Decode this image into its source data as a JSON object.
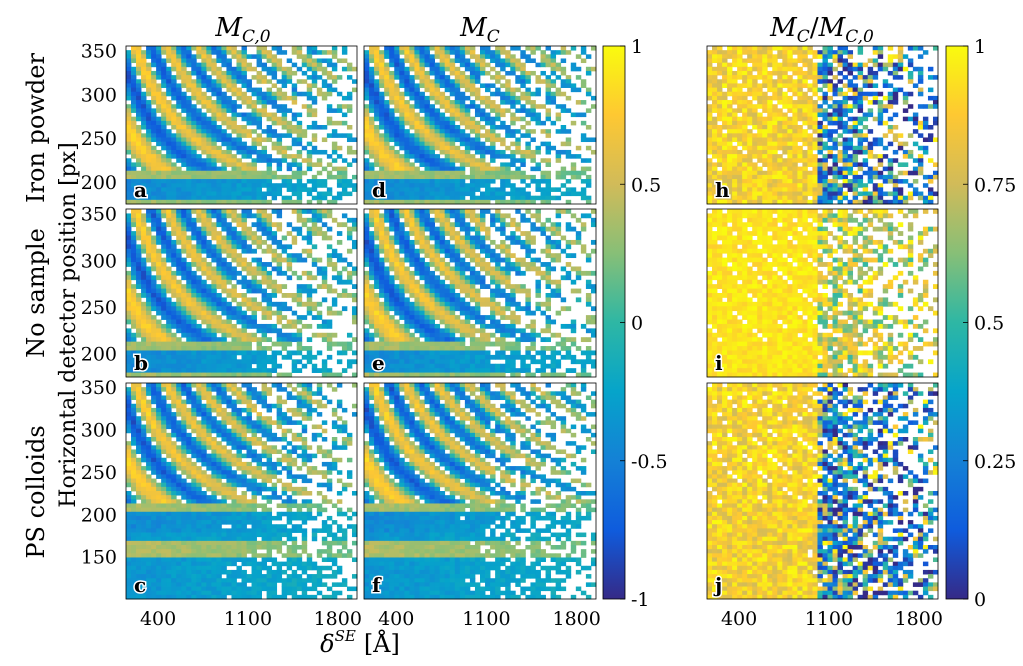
{
  "figure": {
    "col_titles": [
      {
        "base": "M",
        "sub": "C,0"
      },
      {
        "base": "M",
        "sub": "C"
      },
      {
        "base": "M",
        "sub": "C",
        "sep": "/",
        "base2": "M",
        "sub2": "C,0"
      }
    ],
    "row_labels": [
      "Iron powder",
      "No sample",
      "PS colloids"
    ],
    "ylabel": "Horizontal detector position [px]",
    "xlabel": {
      "base": "δ",
      "sup": "SE",
      "unit": "[Å]"
    },
    "panel_letters": {
      "col0": [
        "a",
        "b",
        "c"
      ],
      "col1": [
        "d",
        "e",
        "f"
      ],
      "col2": [
        "h",
        "i",
        "j"
      ]
    },
    "colors": {
      "parula": [
        "#352a87",
        "#0f5cdd",
        "#1481d6",
        "#06a4ca",
        "#2eb7a4",
        "#87bf77",
        "#d1bb59",
        "#fec832",
        "#f9fb0e"
      ],
      "background": "#ffffff"
    }
  },
  "chart_data": [
    {
      "type": "heatmap",
      "panels": [
        "a",
        "b",
        "c",
        "d",
        "e",
        "f"
      ],
      "title": "M_C,0 and M_C",
      "x_ticks": [
        400,
        1100,
        1800
      ],
      "xlim": [
        150,
        1950
      ],
      "y_ticks_rows_1_2": [
        200,
        250,
        300,
        350
      ],
      "ylim_rows_1_2": [
        175,
        355
      ],
      "y_ticks_row_3": [
        150,
        200,
        250,
        300,
        350
      ],
      "ylim_row_3": [
        100,
        355
      ],
      "colorbar": {
        "range": [
          -1,
          1
        ],
        "ticks": [
          "1",
          "0.5",
          "0",
          "-0.5",
          "-1"
        ]
      }
    },
    {
      "type": "heatmap",
      "panels": [
        "h",
        "i",
        "j"
      ],
      "title": "M_C/M_C,0",
      "x_ticks": [
        400,
        1100,
        1800
      ],
      "xlim": [
        150,
        1950
      ],
      "colorbar": {
        "range": [
          0,
          1
        ],
        "ticks": [
          "1",
          "0.75",
          "0.5",
          "0.25",
          "0"
        ]
      }
    }
  ]
}
